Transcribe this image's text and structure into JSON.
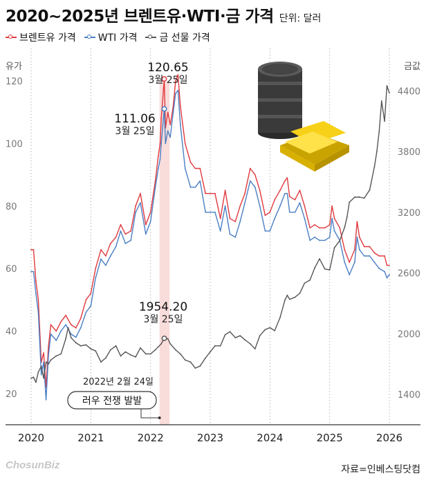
{
  "header": {
    "title": "2020~2025년 브렌트유·WTI·금 가격",
    "unit": "단위: 달러"
  },
  "legend": [
    {
      "label": "브렌트유 가격",
      "color": "#e0393e"
    },
    {
      "label": "WTI 가격",
      "color": "#4a7fc4"
    },
    {
      "label": "금 선물 가격",
      "color": "#555555"
    }
  ],
  "footer": {
    "logo_main": "Chosun",
    "logo_suffix": "Biz",
    "source": "자료=인베스팅닷컴"
  },
  "chart_data": {
    "type": "line",
    "x_ticks": [
      "2020",
      "2021",
      "2022",
      "2023",
      "2024",
      "2025",
      "2026"
    ],
    "y_left": {
      "label": "유가",
      "ticks": [
        20,
        40,
        60,
        80,
        100,
        120
      ],
      "range": [
        10,
        122
      ]
    },
    "y_right": {
      "label": "금값",
      "ticks": [
        1400,
        2000,
        2600,
        3200,
        3800,
        4400
      ],
      "range": [
        1100,
        4560
      ]
    },
    "series": [
      {
        "name": "브렌트유 가격",
        "axis": "left",
        "color": "#e0393e",
        "x": [
          2020.0,
          2020.04,
          2020.08,
          2020.12,
          2020.17,
          2020.21,
          2020.25,
          2020.29,
          2020.33,
          2020.42,
          2020.5,
          2020.58,
          2020.67,
          2020.75,
          2020.83,
          2020.92,
          2021.0,
          2021.08,
          2021.17,
          2021.25,
          2021.33,
          2021.42,
          2021.5,
          2021.58,
          2021.67,
          2021.75,
          2021.83,
          2021.92,
          2022.0,
          2022.08,
          2022.13,
          2022.16,
          2022.18,
          2022.23,
          2022.25,
          2022.29,
          2022.33,
          2022.38,
          2022.42,
          2022.46,
          2022.5,
          2022.58,
          2022.67,
          2022.75,
          2022.83,
          2022.92,
          2023.0,
          2023.08,
          2023.17,
          2023.25,
          2023.33,
          2023.42,
          2023.5,
          2023.58,
          2023.67,
          2023.75,
          2023.83,
          2023.92,
          2024.0,
          2024.08,
          2024.17,
          2024.25,
          2024.29,
          2024.33,
          2024.42,
          2024.5,
          2024.58,
          2024.67,
          2024.75,
          2024.83,
          2024.92,
          2025.0,
          2025.04,
          2025.08,
          2025.17,
          2025.25,
          2025.29,
          2025.33,
          2025.42,
          2025.46,
          2025.5,
          2025.58,
          2025.67,
          2025.75,
          2025.83,
          2025.92,
          2025.96,
          2026.0
        ],
        "values": [
          66,
          66,
          56,
          50,
          30,
          33,
          22,
          35,
          42,
          40,
          43,
          45,
          42,
          41,
          44,
          50,
          52,
          60,
          66,
          64,
          68,
          70,
          74,
          71,
          72,
          80,
          84,
          74,
          78,
          88,
          96,
          100,
          108,
          120.65,
          105,
          110,
          106,
          112,
          120,
          122,
          112,
          100,
          94,
          92,
          92,
          84,
          84,
          84,
          76,
          85,
          76,
          75,
          80,
          84,
          92,
          90,
          85,
          77,
          78,
          82,
          85,
          88,
          89,
          83,
          82,
          85,
          80,
          73,
          74,
          73,
          73,
          74,
          80,
          76,
          73,
          66,
          64,
          62,
          66,
          75,
          70,
          67,
          67,
          65,
          64,
          64,
          61,
          61
        ]
      },
      {
        "name": "WTI 가격",
        "axis": "left",
        "color": "#4a7fc4",
        "x": [
          2020.0,
          2020.04,
          2020.08,
          2020.12,
          2020.17,
          2020.21,
          2020.25,
          2020.29,
          2020.33,
          2020.42,
          2020.5,
          2020.58,
          2020.67,
          2020.75,
          2020.83,
          2020.92,
          2021.0,
          2021.08,
          2021.17,
          2021.25,
          2021.33,
          2021.42,
          2021.5,
          2021.58,
          2021.67,
          2021.75,
          2021.83,
          2021.92,
          2022.0,
          2022.08,
          2022.13,
          2022.16,
          2022.18,
          2022.23,
          2022.25,
          2022.29,
          2022.33,
          2022.38,
          2022.42,
          2022.46,
          2022.5,
          2022.58,
          2022.67,
          2022.75,
          2022.83,
          2022.92,
          2023.0,
          2023.08,
          2023.17,
          2023.25,
          2023.33,
          2023.42,
          2023.5,
          2023.58,
          2023.67,
          2023.75,
          2023.83,
          2023.92,
          2024.0,
          2024.08,
          2024.17,
          2024.25,
          2024.29,
          2024.33,
          2024.42,
          2024.5,
          2024.58,
          2024.67,
          2024.75,
          2024.83,
          2024.92,
          2025.0,
          2025.04,
          2025.08,
          2025.17,
          2025.25,
          2025.29,
          2025.33,
          2025.42,
          2025.46,
          2025.5,
          2025.58,
          2025.67,
          2025.75,
          2025.83,
          2025.92,
          2025.96,
          2026.0
        ],
        "values": [
          59,
          59,
          52,
          46,
          26,
          30,
          18,
          32,
          39,
          37,
          40,
          42,
          39,
          38,
          41,
          46,
          48,
          57,
          63,
          61,
          64,
          67,
          72,
          68,
          69,
          78,
          81,
          71,
          75,
          86,
          92,
          95,
          100,
          111.06,
          100,
          104,
          102,
          110,
          116,
          117,
          106,
          92,
          86,
          86,
          88,
          78,
          78,
          78,
          72,
          80,
          71,
          70,
          75,
          81,
          88,
          86,
          80,
          72,
          72,
          76,
          80,
          84,
          84,
          78,
          78,
          81,
          76,
          69,
          70,
          69,
          69,
          70,
          76,
          72,
          69,
          62,
          60,
          58,
          62,
          70,
          66,
          64,
          64,
          62,
          60,
          59,
          57,
          58
        ]
      },
      {
        "name": "금 선물 가격",
        "axis": "right",
        "color": "#555555",
        "x": [
          2020.0,
          2020.04,
          2020.08,
          2020.12,
          2020.17,
          2020.21,
          2020.25,
          2020.29,
          2020.33,
          2020.42,
          2020.5,
          2020.58,
          2020.62,
          2020.67,
          2020.75,
          2020.83,
          2020.92,
          2021.0,
          2021.08,
          2021.17,
          2021.25,
          2021.33,
          2021.42,
          2021.5,
          2021.58,
          2021.67,
          2021.75,
          2021.83,
          2021.92,
          2022.0,
          2022.08,
          2022.13,
          2022.18,
          2022.23,
          2022.29,
          2022.33,
          2022.42,
          2022.5,
          2022.58,
          2022.67,
          2022.75,
          2022.83,
          2022.92,
          2023.0,
          2023.08,
          2023.17,
          2023.25,
          2023.33,
          2023.42,
          2023.5,
          2023.58,
          2023.67,
          2023.75,
          2023.83,
          2023.92,
          2024.0,
          2024.08,
          2024.17,
          2024.25,
          2024.29,
          2024.33,
          2024.42,
          2024.5,
          2024.58,
          2024.67,
          2024.75,
          2024.83,
          2024.92,
          2025.0,
          2025.08,
          2025.17,
          2025.25,
          2025.29,
          2025.33,
          2025.42,
          2025.5,
          2025.58,
          2025.67,
          2025.75,
          2025.79,
          2025.83,
          2025.87,
          2025.92,
          2025.96,
          2026.0
        ],
        "values": [
          1560,
          1570,
          1520,
          1620,
          1680,
          1560,
          1720,
          1700,
          1740,
          1780,
          1800,
          1950,
          2060,
          1960,
          1910,
          1880,
          1890,
          1850,
          1830,
          1720,
          1760,
          1840,
          1880,
          1780,
          1820,
          1790,
          1770,
          1860,
          1800,
          1800,
          1840,
          1870,
          1900,
          1954.2,
          1950,
          1900,
          1840,
          1800,
          1740,
          1720,
          1660,
          1680,
          1760,
          1820,
          1880,
          1880,
          1990,
          2020,
          1960,
          1980,
          1940,
          1900,
          1850,
          1980,
          2040,
          2060,
          2030,
          2160,
          2330,
          2380,
          2340,
          2360,
          2400,
          2500,
          2530,
          2650,
          2740,
          2640,
          2630,
          2850,
          2920,
          3050,
          3150,
          3300,
          3350,
          3350,
          3340,
          3420,
          3650,
          3800,
          4000,
          4300,
          4100,
          4450,
          4380
        ]
      }
    ],
    "annotations": [
      {
        "series": 0,
        "x": 2022.23,
        "y": 120.65,
        "value": "120.65",
        "date": "3월 25일"
      },
      {
        "series": 1,
        "x": 2022.23,
        "y": 111.06,
        "value": "111.06",
        "date": "3월 25일"
      },
      {
        "series": 2,
        "x": 2022.23,
        "y": 1954.2,
        "value": "1954.20",
        "date": "3월 25일"
      }
    ],
    "event": {
      "x": 2022.15,
      "date": "2022년 2월 24일",
      "label": "러우 전쟁 발발",
      "x_end": 2022.32
    },
    "grid": "vertical-dotted"
  }
}
